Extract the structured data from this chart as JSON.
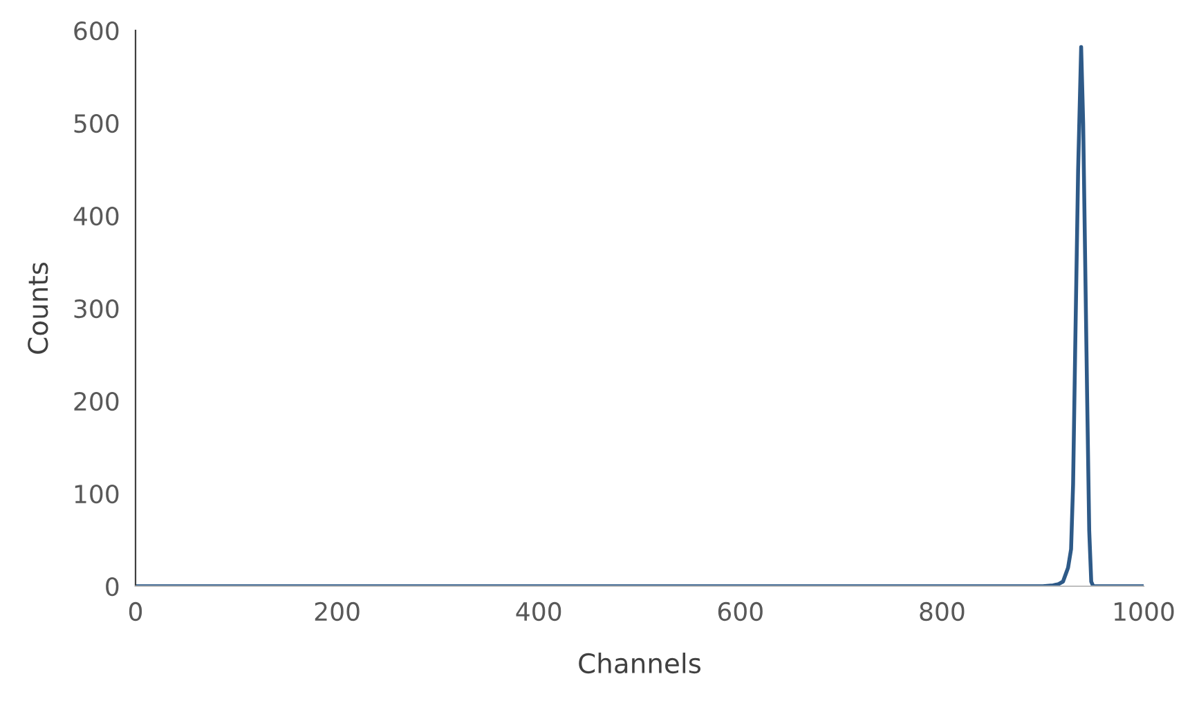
{
  "chart_data": {
    "type": "line",
    "xlabel": "Channels",
    "ylabel": "Counts",
    "series": [
      {
        "color": "#2e5a88",
        "x": [
          0,
          100,
          200,
          300,
          400,
          500,
          600,
          700,
          800,
          900,
          910,
          915,
          920,
          925,
          928,
          930,
          932,
          935,
          938,
          940,
          942,
          944,
          946,
          948,
          950,
          1000
        ],
        "values": [
          0,
          0,
          0,
          0,
          0,
          0,
          0,
          0,
          0,
          0,
          1,
          2,
          5,
          20,
          40,
          110,
          250,
          450,
          582,
          500,
          350,
          200,
          60,
          5,
          0,
          0
        ]
      }
    ],
    "xlim": [
      0,
      1000
    ],
    "xticks": [
      0,
      200,
      400,
      600,
      800,
      1000
    ],
    "ylim": [
      0,
      600
    ],
    "yticks": [
      0,
      100,
      200,
      300,
      400,
      500,
      600
    ],
    "grid": false,
    "legend": false,
    "marker": "none",
    "line_style": "solid"
  }
}
